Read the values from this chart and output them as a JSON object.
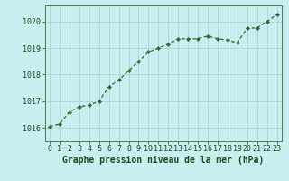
{
  "x": [
    0,
    1,
    2,
    3,
    4,
    5,
    6,
    7,
    8,
    9,
    10,
    11,
    12,
    13,
    14,
    15,
    16,
    17,
    18,
    19,
    20,
    21,
    22,
    23
  ],
  "y": [
    1016.05,
    1016.15,
    1016.6,
    1016.8,
    1016.85,
    1017.0,
    1017.55,
    1017.8,
    1018.15,
    1018.5,
    1018.85,
    1019.0,
    1019.15,
    1019.35,
    1019.35,
    1019.35,
    1019.45,
    1019.35,
    1019.3,
    1019.2,
    1019.75,
    1019.75,
    1020.0,
    1020.25
  ],
  "line_color": "#2d6a2d",
  "marker": "D",
  "marker_size": 2.2,
  "linewidth": 0.9,
  "background_color": "#c8eef0",
  "grid_color": "#aacccc",
  "xlabel": "Graphe pression niveau de la mer (hPa)",
  "xlabel_fontsize": 7,
  "xlabel_color": "#1a4a1a",
  "tick_color": "#1a4a1a",
  "tick_fontsize": 6,
  "ylim": [
    1015.5,
    1020.6
  ],
  "yticks": [
    1016,
    1017,
    1018,
    1019,
    1020
  ],
  "xlim": [
    -0.5,
    23.5
  ],
  "xticks": [
    0,
    1,
    2,
    3,
    4,
    5,
    6,
    7,
    8,
    9,
    10,
    11,
    12,
    13,
    14,
    15,
    16,
    17,
    18,
    19,
    20,
    21,
    22,
    23
  ],
  "spine_color": "#4a7a4a"
}
